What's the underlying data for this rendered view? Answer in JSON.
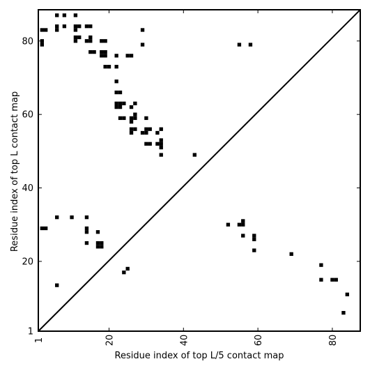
{
  "chart_data": {
    "type": "scatter",
    "title": "",
    "xlabel": "Residue index of top L/5 contact map",
    "ylabel": "Residue index of top L contact map",
    "xlim": [
      1,
      87.5
    ],
    "ylim": [
      1,
      88.5
    ],
    "x_ticks": [
      1,
      20,
      40,
      60,
      80
    ],
    "y_ticks": [
      1,
      20,
      40,
      60,
      80
    ],
    "grid": false,
    "legend": "none",
    "diagonal": {
      "from": [
        1,
        1
      ],
      "to": [
        87.5,
        88.5
      ]
    },
    "marker_color": "#000000",
    "upper_triangle_points": [
      [
        2,
        83
      ],
      [
        3,
        83
      ],
      [
        2,
        80
      ],
      [
        2,
        79
      ],
      [
        6,
        87
      ],
      [
        8,
        87
      ],
      [
        11,
        87
      ],
      [
        6,
        84
      ],
      [
        6,
        83
      ],
      [
        8,
        84
      ],
      [
        11,
        84
      ],
      [
        12,
        84
      ],
      [
        11,
        83
      ],
      [
        14,
        84
      ],
      [
        15,
        84
      ],
      [
        11,
        81
      ],
      [
        12,
        81
      ],
      [
        11,
        80
      ],
      [
        14,
        80
      ],
      [
        15,
        80
      ],
      [
        15,
        81
      ],
      [
        15,
        77
      ],
      [
        16,
        77
      ],
      [
        18,
        80
      ],
      [
        19,
        80
      ],
      [
        18,
        77
      ],
      [
        19,
        77
      ],
      [
        18,
        76
      ],
      [
        19,
        76
      ],
      [
        19,
        73
      ],
      [
        20,
        73
      ],
      [
        22,
        76
      ],
      [
        25,
        76
      ],
      [
        26,
        76
      ],
      [
        22,
        73
      ],
      [
        29,
        83
      ],
      [
        29,
        79
      ],
      [
        22,
        69
      ],
      [
        22,
        66
      ],
      [
        23,
        66
      ],
      [
        22,
        63
      ],
      [
        23,
        63
      ],
      [
        24,
        63
      ],
      [
        22,
        62
      ],
      [
        23,
        62
      ],
      [
        27,
        63
      ],
      [
        26,
        62
      ],
      [
        23,
        59
      ],
      [
        24,
        59
      ],
      [
        26,
        59
      ],
      [
        27,
        59
      ],
      [
        27,
        60
      ],
      [
        26,
        58
      ],
      [
        30,
        59
      ],
      [
        26,
        56
      ],
      [
        27,
        56
      ],
      [
        26,
        55
      ],
      [
        29,
        55
      ],
      [
        30,
        55
      ],
      [
        30,
        56
      ],
      [
        31,
        56
      ],
      [
        33,
        55
      ],
      [
        34,
        56
      ],
      [
        30,
        52
      ],
      [
        31,
        52
      ],
      [
        33,
        52
      ],
      [
        34,
        52
      ],
      [
        34,
        53
      ],
      [
        34,
        51
      ],
      [
        34,
        49
      ],
      [
        43,
        49
      ],
      [
        55,
        79
      ],
      [
        58,
        79
      ]
    ],
    "lower_triangle_points": [
      [
        2,
        29
      ],
      [
        3,
        29
      ],
      [
        6,
        32
      ],
      [
        10,
        32
      ],
      [
        14,
        32
      ],
      [
        14,
        29
      ],
      [
        14,
        28
      ],
      [
        17,
        28
      ],
      [
        14,
        25
      ],
      [
        17,
        25
      ],
      [
        18,
        25
      ],
      [
        17,
        24
      ],
      [
        18,
        24
      ],
      [
        6,
        13.5
      ],
      [
        24,
        17
      ],
      [
        25,
        18
      ],
      [
        52,
        30
      ],
      [
        55,
        30
      ],
      [
        56,
        30
      ],
      [
        56,
        31
      ],
      [
        56,
        27
      ],
      [
        59,
        27
      ],
      [
        59,
        26
      ],
      [
        59,
        23
      ],
      [
        69,
        22
      ],
      [
        77,
        19
      ],
      [
        77,
        15
      ],
      [
        80,
        15
      ],
      [
        81,
        15
      ],
      [
        84,
        11
      ],
      [
        83,
        6
      ]
    ]
  }
}
